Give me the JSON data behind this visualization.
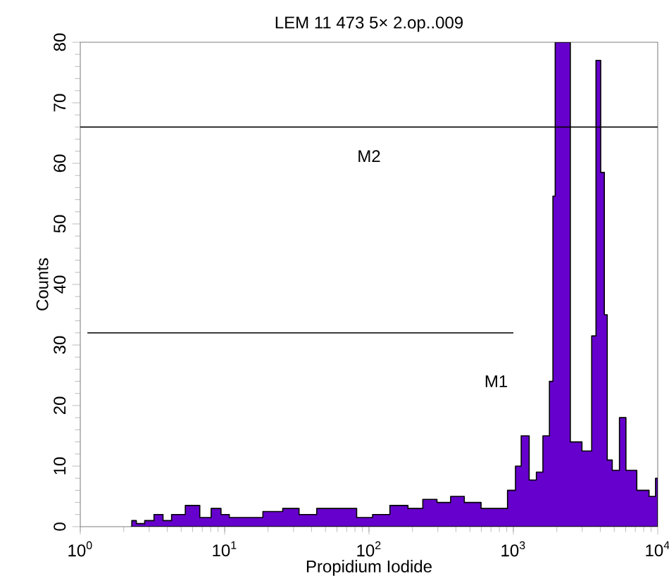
{
  "chart_data": {
    "type": "area",
    "title": "LEM 11 473 5× 2.op..009",
    "xlabel": "Propidium Iodide",
    "ylabel": "Counts",
    "log": "x",
    "xlim": [
      1,
      10000
    ],
    "ylim": [
      0,
      80
    ],
    "xticks": [
      {
        "value": 1,
        "label": "10$^{0}$"
      },
      {
        "value": 10,
        "label": "10$^{1}$"
      },
      {
        "value": 100,
        "label": "10$^{2}$"
      },
      {
        "value": 1000,
        "label": "10$^{3}$"
      },
      {
        "value": 10000,
        "label": "10$^{4}$"
      }
    ],
    "yticks": [
      0,
      10,
      20,
      30,
      40,
      50,
      60,
      70,
      80
    ],
    "grid": false,
    "legend": false,
    "series": [
      {
        "color": "#6600cc",
        "x": [
          2.25,
          2.3,
          2.6,
          3.0,
          3.5,
          4.0,
          4.6,
          6.2,
          7.3,
          8.9,
          10,
          11.6,
          15.4,
          22,
          29,
          37,
          51,
          71,
          95,
          118,
          165,
          210,
          265,
          330,
          410,
          510,
          700,
          830,
          1000,
          1070,
          1200,
          1380,
          1510,
          1700,
          1860,
          1900,
          2000,
          2340,
          2630,
          3390,
          3590,
          3890,
          4170,
          4370,
          4570,
          5130,
          5750,
          6310,
          8130,
          9330,
          10000
        ],
        "values": [
          0,
          1,
          0.5,
          1,
          2,
          1,
          2,
          3.5,
          1.5,
          3,
          2,
          1.5,
          1.5,
          2.5,
          3,
          2,
          3,
          3,
          1.5,
          2,
          3.5,
          3,
          4.5,
          4,
          5,
          4,
          3,
          3,
          6,
          10,
          15,
          7.7,
          9,
          15,
          24,
          54.6,
          80,
          80,
          14,
          12.5,
          31.5,
          77,
          58.5,
          35,
          11,
          9.3,
          18,
          9.3,
          6,
          5,
          8
        ]
      },
      {
        "type": "line",
        "name": "M1",
        "color": "#000000",
        "x": [
          1.12,
          1000
        ],
        "values": [
          32,
          32
        ]
      },
      {
        "type": "line",
        "name": "M2",
        "color": "#000000",
        "x": [
          1,
          10000
        ],
        "values": [
          66,
          66
        ]
      }
    ]
  }
}
